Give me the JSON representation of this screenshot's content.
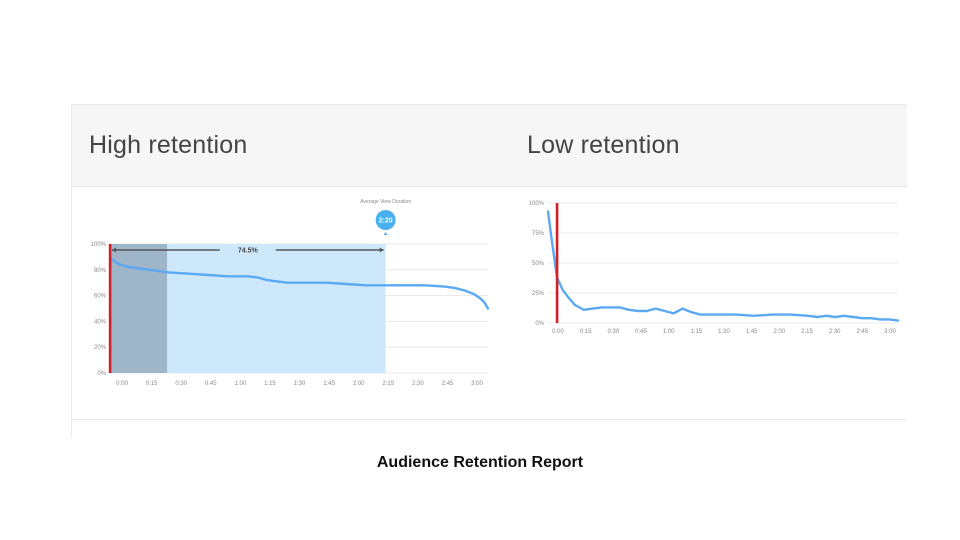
{
  "caption": "Audience Retention Report",
  "colors": {
    "line": "#5aa9f2",
    "highlight": "#cde8fb",
    "dark_overlay": "#9fb5c8",
    "marker": "#d0212a",
    "bubble": "#49b0f0"
  },
  "chart_data": [
    {
      "type": "line",
      "title": "High retention",
      "annotation": {
        "label": "Average View Duration",
        "bubble": "2:20",
        "span_label": "74.5%"
      },
      "y_ticks": [
        "100%",
        "80%",
        "60%",
        "40%",
        "20%",
        "0%"
      ],
      "x_ticks": [
        "0:00",
        "0:15",
        "0:30",
        "0:45",
        "1:00",
        "1:15",
        "1:30",
        "1:45",
        "2:00",
        "2:15",
        "2:30",
        "2:45",
        "3:00"
      ],
      "ylim": [
        0,
        100
      ],
      "xlim": [
        0,
        192
      ],
      "series": [
        {
          "x": [
            0,
            2,
            5,
            10,
            15,
            20,
            25,
            30,
            40,
            50,
            60,
            70,
            75,
            80,
            85,
            90,
            100,
            110,
            120,
            130,
            140,
            150,
            160,
            170,
            175,
            180,
            185,
            188,
            190,
            192
          ],
          "y": [
            89,
            87,
            84,
            82,
            81,
            80,
            79,
            78,
            77,
            76,
            75,
            75,
            74,
            72,
            71,
            70,
            70,
            70,
            69,
            68,
            68,
            68,
            68,
            67,
            66,
            64,
            61,
            58,
            55,
            50
          ]
        }
      ],
      "shaded_ranges": [
        {
          "from": 0,
          "to": 29,
          "style": "dark"
        },
        {
          "from": 0,
          "to": 140,
          "style": "light"
        }
      ],
      "marker_x": 0
    },
    {
      "type": "line",
      "title": "Low retention",
      "y_ticks": [
        "100%",
        "75%",
        "50%",
        "25%",
        "0%"
      ],
      "x_ticks": [
        "0:00",
        "0:15",
        "0:30",
        "0:45",
        "1:00",
        "1:15",
        "1:30",
        "1:45",
        "2:00",
        "2:15",
        "2:30",
        "2:45",
        "3:00"
      ],
      "ylim": [
        0,
        100
      ],
      "xlim": [
        -5,
        190
      ],
      "series": [
        {
          "x": [
            -5,
            -3,
            0,
            3,
            6,
            10,
            15,
            20,
            25,
            30,
            35,
            40,
            45,
            50,
            55,
            60,
            65,
            70,
            75,
            80,
            90,
            100,
            110,
            120,
            130,
            140,
            145,
            150,
            155,
            160,
            165,
            170,
            175,
            180,
            185,
            190
          ],
          "y": [
            93,
            70,
            38,
            28,
            22,
            15,
            11,
            12,
            13,
            13,
            13,
            11,
            10,
            10,
            12,
            10,
            8,
            12,
            9,
            7,
            7,
            7,
            6,
            7,
            7,
            6,
            5,
            6,
            5,
            6,
            5,
            4,
            4,
            3,
            3,
            2
          ]
        }
      ],
      "marker_x": 0
    }
  ]
}
